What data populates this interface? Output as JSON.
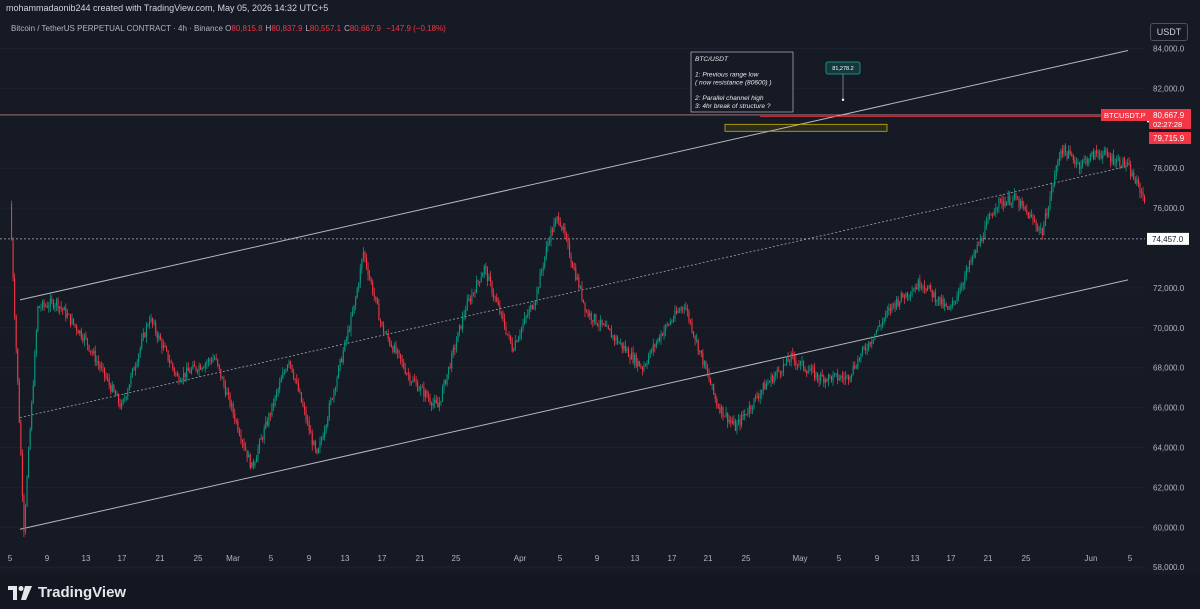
{
  "header": {
    "author_line": "mohammadaonib244 created with TradingView.com, May 05, 2026 14:32 UTC+5",
    "symbol_line": "Bitcoin / TetherUS PERPETUAL CONTRACT · 4h · Binance",
    "ohlc": [
      {
        "key": "O",
        "value": "80,815.8"
      },
      {
        "key": "H",
        "value": "80,837.9"
      },
      {
        "key": "L",
        "value": "80,557.1"
      },
      {
        "key": "C",
        "value": "80,667.9"
      }
    ],
    "change": "−147.9 (−0.18%)",
    "currency_chip": "USDT"
  },
  "footer": {
    "brand": "TradingView"
  },
  "colors": {
    "background": "#161a25",
    "up": "#089981",
    "down": "#f23645",
    "channel": "#d1d4dc",
    "zone": "#c8b400",
    "text": "#d1d4dc"
  },
  "chart_data": {
    "type": "candlestick",
    "title": "Bitcoin / TetherUS PERPETUAL CONTRACT · 4h · Binance",
    "x_tick_labels": [
      "5",
      "9",
      "13",
      "17",
      "21",
      "25",
      "Mar",
      "5",
      "9",
      "13",
      "17",
      "21",
      "25",
      "Apr",
      "5",
      "9",
      "13",
      "17",
      "21",
      "25",
      "May",
      "5",
      "9",
      "13",
      "17",
      "21",
      "25",
      "Jun",
      "5"
    ],
    "y_tick_labels": [
      "84,000.0",
      "82,000.0",
      "78,000.0",
      "76,000.0",
      "72,000.0",
      "70,000.0",
      "68,000.0",
      "66,000.0",
      "64,000.0",
      "62,000.0",
      "60,000.0",
      "58,000.0"
    ],
    "ylim": [
      57300,
      85100
    ],
    "price_path": [
      [
        0,
        76200
      ],
      [
        1.5,
        60000
      ],
      [
        3,
        71000
      ],
      [
        5,
        71300
      ],
      [
        8,
        69500
      ],
      [
        12,
        66000
      ],
      [
        15,
        70500
      ],
      [
        18,
        67500
      ],
      [
        22,
        68500
      ],
      [
        26,
        63000
      ],
      [
        30,
        68500
      ],
      [
        33,
        63500
      ],
      [
        37,
        71000
      ],
      [
        38,
        73800
      ],
      [
        40,
        70000
      ],
      [
        43,
        67500
      ],
      [
        46,
        66000
      ],
      [
        49,
        71000
      ],
      [
        51,
        73000
      ],
      [
        54,
        69000
      ],
      [
        56.5,
        71500
      ],
      [
        58,
        74600
      ],
      [
        59,
        75600
      ],
      [
        62,
        70800
      ],
      [
        65,
        69500
      ],
      [
        68,
        68000
      ],
      [
        70,
        69700
      ],
      [
        72.5,
        71200
      ],
      [
        76,
        66200
      ],
      [
        78,
        65000
      ],
      [
        81,
        67000
      ],
      [
        84,
        68500
      ],
      [
        87,
        67500
      ],
      [
        90,
        67500
      ],
      [
        92,
        69000
      ],
      [
        95,
        71200
      ],
      [
        98,
        72300
      ],
      [
        101,
        70800
      ],
      [
        104,
        74000
      ],
      [
        106,
        76200
      ],
      [
        108,
        76500
      ],
      [
        111,
        74800
      ],
      [
        113,
        79000
      ],
      [
        115,
        78200
      ],
      [
        117,
        78800
      ],
      [
        120,
        78200
      ],
      [
        122,
        76500
      ],
      [
        124,
        77000
      ],
      [
        126,
        75300
      ],
      [
        128,
        77500
      ],
      [
        129,
        78000
      ],
      [
        131,
        78500
      ],
      [
        132,
        79000
      ],
      [
        133,
        80600
      ],
      [
        134,
        80667.9
      ]
    ],
    "channel_upper": {
      "from": [
        "Feb 06",
        71400
      ],
      "to": [
        "Jun 05",
        83900
      ]
    },
    "channel_mid": {
      "from": [
        "Feb 06",
        65500
      ],
      "to": [
        "Jun 05",
        78100
      ]
    },
    "channel_lower": {
      "from": [
        "Feb 06",
        59900
      ],
      "to": [
        "Jun 05",
        72400
      ]
    },
    "horizontal_levels": [
      {
        "label": "74,457.0",
        "value": 74457,
        "style": "dotted"
      },
      {
        "label": "80,600.0",
        "value": 80600,
        "style": "solid-red"
      }
    ],
    "resistance_zone": {
      "low": 79850,
      "high": 80200,
      "label": "80600"
    },
    "price_label": {
      "label": "BTCUSDT.P",
      "value": "80,667.9",
      "countdown": "02:27:28"
    },
    "low_label": {
      "value": "79,715.9"
    },
    "peak_label": {
      "value": "81,278.2"
    },
    "annotation": {
      "lines": [
        "BTC/USDT",
        "",
        "1: Previous range low",
        "( now resistance (80600) )",
        "",
        "2: Parallel channel high",
        "3: 4hr break of structure ?"
      ]
    }
  }
}
